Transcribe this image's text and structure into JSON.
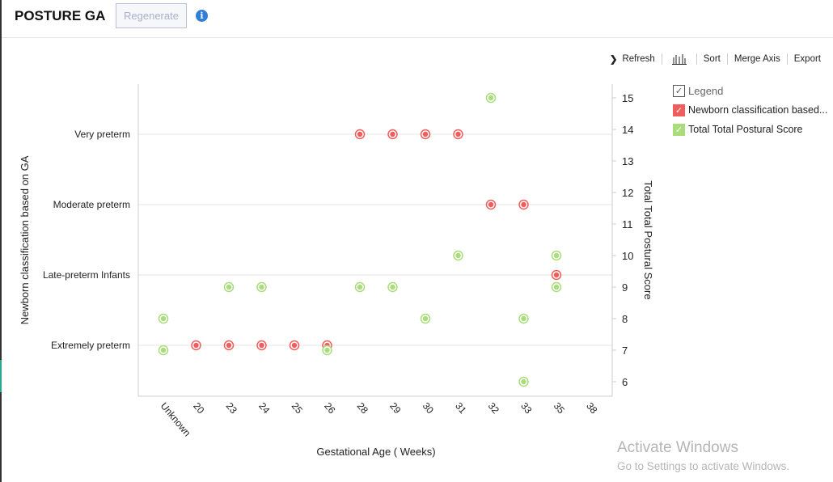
{
  "header": {
    "title": "POSTURE GA",
    "regenerate_label": "Regenerate",
    "info_icon": "i"
  },
  "toolbar": {
    "refresh": "Refresh",
    "sort": "Sort",
    "merge_axis": "Merge Axis",
    "export": "Export"
  },
  "legend": {
    "title": "Legend",
    "items": [
      "Newborn classification based...",
      "Total Total Postural Score"
    ]
  },
  "watermark": {
    "line1": "Activate Windows",
    "line2": "Go to Settings to activate Windows."
  },
  "chart_data": {
    "type": "scatter",
    "xlabel": "Gestational Age ( Weeks)",
    "ylabel_left": "Newborn classification based on GA",
    "ylabel_right": "Total Total Postural Score",
    "categories": [
      "Unknown",
      "20",
      "23",
      "24",
      "25",
      "26",
      "28",
      "29",
      "30",
      "31",
      "32",
      "33",
      "35",
      "38"
    ],
    "left_categories": [
      "Extremely preterm",
      "Late-preterm Infants",
      "Moderate preterm",
      "Very preterm"
    ],
    "right_ticks": [
      6,
      7,
      8,
      9,
      10,
      11,
      12,
      13,
      14,
      15
    ],
    "series": [
      {
        "name": "Newborn classification based on GA",
        "color": "#f25c5c",
        "axis": "left",
        "points": [
          [
            "20",
            "Extremely preterm"
          ],
          [
            "23",
            "Extremely preterm"
          ],
          [
            "24",
            "Extremely preterm"
          ],
          [
            "25",
            "Extremely preterm"
          ],
          [
            "26",
            "Extremely preterm"
          ],
          [
            "28",
            "Very preterm"
          ],
          [
            "29",
            "Very preterm"
          ],
          [
            "30",
            "Very preterm"
          ],
          [
            "31",
            "Very preterm"
          ],
          [
            "32",
            "Moderate preterm"
          ],
          [
            "33",
            "Moderate preterm"
          ],
          [
            "35",
            "Late-preterm Infants"
          ]
        ]
      },
      {
        "name": "Total Total Postural Score",
        "color": "#a9dc7a",
        "axis": "right",
        "points": [
          [
            "Unknown",
            8
          ],
          [
            "Unknown",
            7
          ],
          [
            "23",
            9
          ],
          [
            "24",
            9
          ],
          [
            "26",
            7
          ],
          [
            "28",
            9
          ],
          [
            "29",
            9
          ],
          [
            "30",
            8
          ],
          [
            "31",
            10
          ],
          [
            "32",
            15
          ],
          [
            "33",
            8
          ],
          [
            "33",
            6
          ],
          [
            "35",
            10
          ],
          [
            "35",
            9
          ]
        ]
      }
    ]
  }
}
